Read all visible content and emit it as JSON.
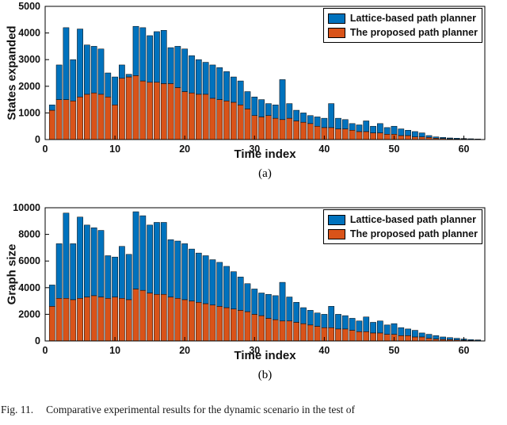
{
  "page": {
    "caption_label": "Fig. 11.",
    "caption_text": "Comparative experimental results for the dynamic scenario in the test of"
  },
  "colors": {
    "lattice": "#0072BD",
    "proposed": "#D95319",
    "bar_edge": "#000000",
    "axis": "#000000",
    "background": "#ffffff"
  },
  "legend": {
    "position": "top-right",
    "items": [
      {
        "label": "Lattice-based path planner",
        "color_key": "lattice"
      },
      {
        "label": "The proposed path planner",
        "color_key": "proposed"
      }
    ]
  },
  "chart_data": [
    {
      "id": "a",
      "type": "bar",
      "stacked": true,
      "title": "",
      "sublabel": "(a)",
      "xlabel": "Time index",
      "ylabel": "States expanded",
      "xlim": [
        0,
        63
      ],
      "ylim": [
        0,
        5000
      ],
      "xticks": [
        0,
        10,
        20,
        30,
        40,
        50,
        60
      ],
      "yticks": [
        0,
        1000,
        2000,
        3000,
        4000,
        5000
      ],
      "grid": false,
      "legend_position": "top-right",
      "x": [
        1,
        2,
        3,
        4,
        5,
        6,
        7,
        8,
        9,
        10,
        11,
        12,
        13,
        14,
        15,
        16,
        17,
        18,
        19,
        20,
        21,
        22,
        23,
        24,
        25,
        26,
        27,
        28,
        29,
        30,
        31,
        32,
        33,
        34,
        35,
        36,
        37,
        38,
        39,
        40,
        41,
        42,
        43,
        44,
        45,
        46,
        47,
        48,
        49,
        50,
        51,
        52,
        53,
        54,
        55,
        56,
        57,
        58,
        59,
        60,
        61,
        62
      ],
      "series": [
        {
          "name": "The proposed path planner",
          "color": "#D95319",
          "values": [
            1100,
            1500,
            1500,
            1450,
            1600,
            1700,
            1750,
            1700,
            1600,
            1300,
            2300,
            2350,
            2400,
            2200,
            2150,
            2150,
            2100,
            2100,
            1950,
            1800,
            1750,
            1700,
            1700,
            1550,
            1500,
            1450,
            1400,
            1300,
            1150,
            900,
            850,
            900,
            800,
            750,
            800,
            700,
            650,
            600,
            500,
            450,
            450,
            400,
            400,
            350,
            300,
            300,
            250,
            250,
            200,
            200,
            150,
            150,
            100,
            100,
            80,
            50,
            40,
            30,
            20,
            20,
            10,
            10
          ]
        },
        {
          "name": "Lattice-based path planner",
          "color": "#0072BD",
          "values": [
            200,
            1300,
            2700,
            1550,
            2550,
            1850,
            1750,
            1700,
            900,
            1050,
            500,
            100,
            1850,
            2000,
            1750,
            1900,
            2000,
            1350,
            1550,
            1600,
            1400,
            1300,
            1200,
            1250,
            1200,
            1100,
            950,
            900,
            650,
            700,
            650,
            450,
            500,
            1500,
            550,
            400,
            350,
            300,
            350,
            350,
            900,
            400,
            350,
            250,
            250,
            400,
            250,
            350,
            250,
            300,
            250,
            200,
            200,
            150,
            70,
            50,
            40,
            30,
            30,
            20,
            20,
            10
          ]
        }
      ]
    },
    {
      "id": "b",
      "type": "bar",
      "stacked": true,
      "title": "",
      "sublabel": "(b)",
      "xlabel": "Time index",
      "ylabel": "Graph size",
      "xlim": [
        0,
        63
      ],
      "ylim": [
        0,
        10000
      ],
      "xticks": [
        0,
        10,
        20,
        30,
        40,
        50,
        60
      ],
      "yticks": [
        0,
        2000,
        4000,
        6000,
        8000,
        10000
      ],
      "grid": false,
      "legend_position": "top-right",
      "x": [
        1,
        2,
        3,
        4,
        5,
        6,
        7,
        8,
        9,
        10,
        11,
        12,
        13,
        14,
        15,
        16,
        17,
        18,
        19,
        20,
        21,
        22,
        23,
        24,
        25,
        26,
        27,
        28,
        29,
        30,
        31,
        32,
        33,
        34,
        35,
        36,
        37,
        38,
        39,
        40,
        41,
        42,
        43,
        44,
        45,
        46,
        47,
        48,
        49,
        50,
        51,
        52,
        53,
        54,
        55,
        56,
        57,
        58,
        59,
        60,
        61,
        62
      ],
      "series": [
        {
          "name": "The proposed path planner",
          "color": "#D95319",
          "values": [
            2600,
            3200,
            3200,
            3100,
            3200,
            3300,
            3400,
            3300,
            3200,
            3300,
            3200,
            3100,
            3900,
            3800,
            3600,
            3500,
            3500,
            3300,
            3200,
            3100,
            3000,
            2900,
            2800,
            2700,
            2600,
            2500,
            2400,
            2300,
            2200,
            2000,
            1900,
            1700,
            1600,
            1500,
            1500,
            1400,
            1300,
            1200,
            1100,
            1000,
            1000,
            900,
            900,
            800,
            700,
            700,
            600,
            600,
            500,
            500,
            400,
            400,
            300,
            300,
            200,
            150,
            120,
            100,
            80,
            60,
            40,
            30
          ]
        },
        {
          "name": "Lattice-based path planner",
          "color": "#0072BD",
          "values": [
            1600,
            4100,
            6400,
            4200,
            6100,
            5400,
            5100,
            5000,
            3200,
            3000,
            3900,
            3400,
            5800,
            5600,
            5100,
            5400,
            5400,
            4300,
            4300,
            4200,
            3900,
            3700,
            3600,
            3400,
            3300,
            3100,
            2800,
            2500,
            2100,
            1900,
            1700,
            1800,
            1800,
            2900,
            1800,
            1500,
            1200,
            1100,
            1000,
            1000,
            1600,
            1100,
            1000,
            900,
            800,
            1100,
            800,
            900,
            700,
            800,
            600,
            500,
            500,
            300,
            300,
            250,
            180,
            150,
            120,
            90,
            60,
            50
          ]
        }
      ]
    }
  ]
}
